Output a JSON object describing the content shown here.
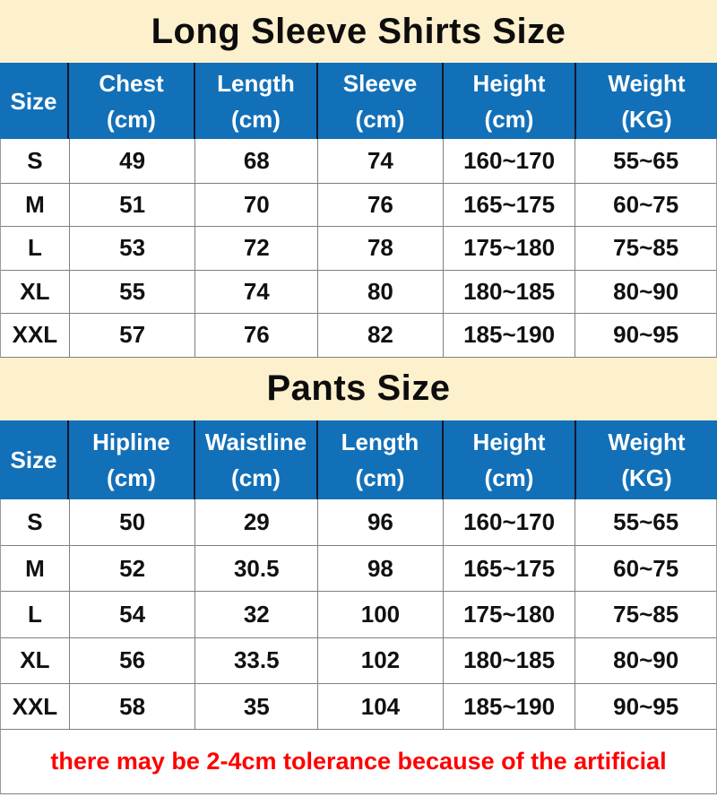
{
  "colors": {
    "header_blue": "#1270b8",
    "title_band_cream": "#fdf0cd",
    "grid_gray": "#7f7f7f",
    "note_red": "#ff0000",
    "text_black": "#111111"
  },
  "tables": [
    {
      "title": "Long Sleeve Shirts Size",
      "columns": [
        {
          "label": "Size",
          "unit": ""
        },
        {
          "label": "Chest",
          "unit": "(cm)"
        },
        {
          "label": "Length",
          "unit": "(cm)"
        },
        {
          "label": "Sleeve",
          "unit": "(cm)"
        },
        {
          "label": "Height",
          "unit": "(cm)"
        },
        {
          "label": "Weight",
          "unit": "(KG)"
        }
      ],
      "rows": [
        [
          "S",
          "49",
          "68",
          "74",
          "160~170",
          "55~65"
        ],
        [
          "M",
          "51",
          "70",
          "76",
          "165~175",
          "60~75"
        ],
        [
          "L",
          "53",
          "72",
          "78",
          "175~180",
          "75~85"
        ],
        [
          "XL",
          "55",
          "74",
          "80",
          "180~185",
          "80~90"
        ],
        [
          "XXL",
          "57",
          "76",
          "82",
          "185~190",
          "90~95"
        ]
      ]
    },
    {
      "title": "Pants Size",
      "columns": [
        {
          "label": "Size",
          "unit": ""
        },
        {
          "label": "Hipline",
          "unit": "(cm)"
        },
        {
          "label": "Waistline",
          "unit": "(cm)"
        },
        {
          "label": "Length",
          "unit": "(cm)"
        },
        {
          "label": "Height",
          "unit": "(cm)"
        },
        {
          "label": "Weight",
          "unit": "(KG)"
        }
      ],
      "rows": [
        [
          "S",
          "50",
          "29",
          "96",
          "160~170",
          "55~65"
        ],
        [
          "M",
          "52",
          "30.5",
          "98",
          "165~175",
          "60~75"
        ],
        [
          "L",
          "54",
          "32",
          "100",
          "175~180",
          "75~85"
        ],
        [
          "XL",
          "56",
          "33.5",
          "102",
          "180~185",
          "80~90"
        ],
        [
          "XXL",
          "58",
          "35",
          "104",
          "185~190",
          "90~95"
        ]
      ]
    }
  ],
  "footer": {
    "note": "there may be 2-4cm tolerance because of the artificial"
  }
}
